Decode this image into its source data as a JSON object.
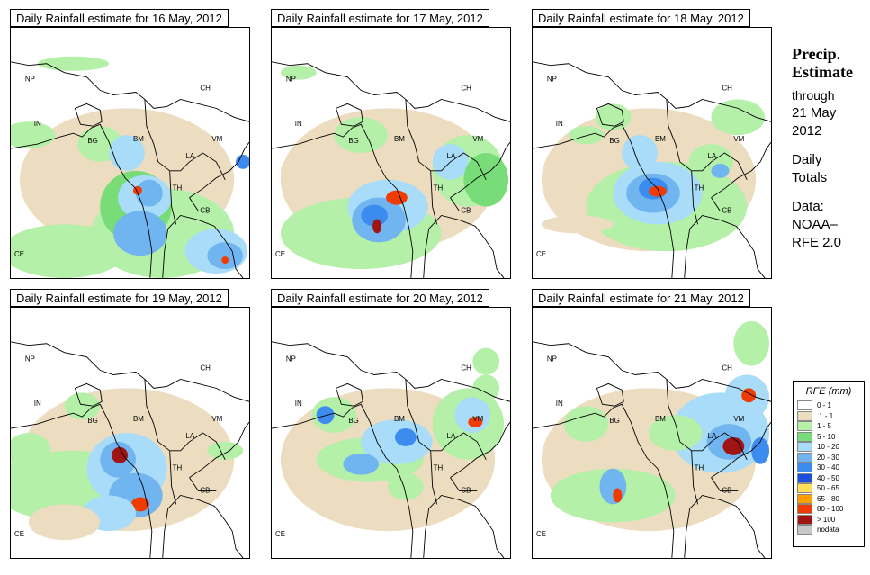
{
  "panels": [
    {
      "title": "Daily Rainfall estimate for  16 May, 2012"
    },
    {
      "title": "Daily Rainfall estimate for  17 May, 2012"
    },
    {
      "title": "Daily Rainfall estimate for  18 May, 2012"
    },
    {
      "title": "Daily Rainfall estimate for  19 May, 2012"
    },
    {
      "title": "Daily Rainfall estimate for  20 May, 2012"
    },
    {
      "title": "Daily Rainfall estimate for  21 May, 2012"
    }
  ],
  "country_labels": [
    "NP",
    "CH",
    "IN",
    "BG",
    "BM",
    "VM",
    "LA",
    "TH",
    "CB",
    "CE"
  ],
  "side": {
    "line1": "Precip.",
    "line2": "Estimate",
    "line3": "through",
    "line4": "21 May",
    "line5": "2012",
    "line6": "Daily",
    "line7": "Totals",
    "line8": "Data:",
    "line9": "NOAA–",
    "line10": "RFE 2.0"
  },
  "legend": {
    "title": "RFE (mm)",
    "items": [
      {
        "label": "0 - 1",
        "color": "#ffffff"
      },
      {
        "label": ".1 - 1",
        "color": "#ecdcc0"
      },
      {
        "label": "1 - 5",
        "color": "#b4f0a8"
      },
      {
        "label": "5 - 10",
        "color": "#78dc78"
      },
      {
        "label": "10 - 20",
        "color": "#a8dcf8"
      },
      {
        "label": "20 - 30",
        "color": "#70b4f0"
      },
      {
        "label": "30 - 40",
        "color": "#3c8cf0"
      },
      {
        "label": "40 - 50",
        "color": "#1c50dc"
      },
      {
        "label": "50 - 65",
        "color": "#ffe058"
      },
      {
        "label": "65 - 80",
        "color": "#ffa000"
      },
      {
        "label": "80 - 100",
        "color": "#f03c00"
      },
      {
        "label": "> 100",
        "color": "#a01414"
      },
      {
        "label": "nodata",
        "color": "#c8c8c8"
      }
    ]
  }
}
